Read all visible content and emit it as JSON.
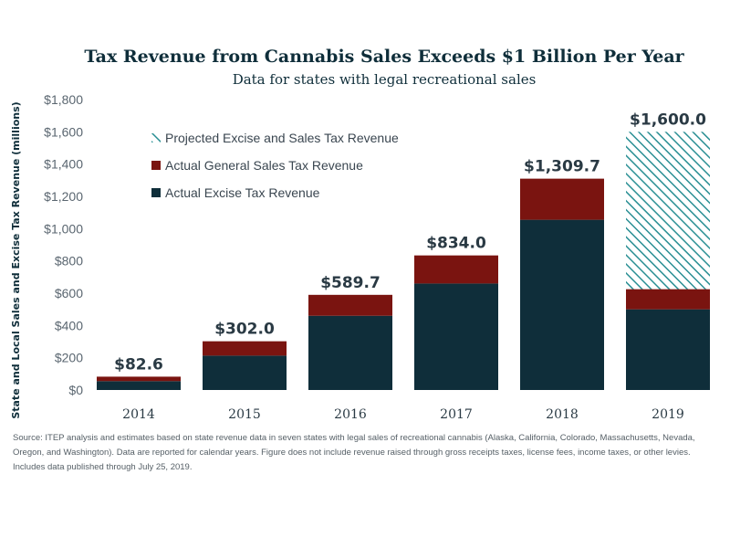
{
  "colors": {
    "excise": "#0f2e3a",
    "general_sales": "#7a1410",
    "projected": "#2a8f94",
    "text_dark": "#0f2e3a"
  },
  "legend": {
    "items": [
      {
        "label": "Projected Excise and Sales Tax Revenue",
        "style": "hatched",
        "color": "#2a8f94"
      },
      {
        "label": "Actual General Sales Tax Revenue",
        "style": "solid",
        "color": "#7a1410"
      },
      {
        "label": "Actual Excise Tax Revenue",
        "style": "solid",
        "color": "#0f2e3a"
      }
    ]
  },
  "source_note": "Source: ITEP analysis and estimates based on state revenue data in seven states with legal sales of recreational cannabis (Alaska, California, Colorado, Massachusetts, Nevada, Oregon, and Washington). Data are reported for calendar years. Figure does not include revenue raised through gross receipts taxes, license fees, income taxes, or other levies. Includes data published through July 25, 2019.",
  "chart_data": {
    "type": "bar",
    "stacked": true,
    "title": "Tax Revenue from Cannabis Sales Exceeds $1 Billion Per Year",
    "subtitle": "Data for states with legal recreational sales",
    "ylabel": "State and Local Sales and Excise Tax Revenue (millions)",
    "xlabel": "",
    "ylim": [
      0,
      1800
    ],
    "yticks": [
      0,
      200,
      400,
      600,
      800,
      1000,
      1200,
      1400,
      1600,
      1800
    ],
    "ytick_labels": [
      "$0",
      "$200",
      "$400",
      "$600",
      "$800",
      "$1,000",
      "$1,200",
      "$1,400",
      "$1,600",
      "$1,800"
    ],
    "categories": [
      "2014",
      "2015",
      "2016",
      "2017",
      "2018",
      "2019"
    ],
    "series": [
      {
        "name": "Actual Excise Tax Revenue",
        "values": [
          55,
          213,
          460,
          660,
          1055,
          500
        ]
      },
      {
        "name": "Actual General Sales Tax Revenue",
        "values": [
          27.6,
          89,
          129.7,
          174,
          254.7,
          125
        ]
      },
      {
        "name": "Projected Excise and Sales Tax Revenue",
        "values": [
          0,
          0,
          0,
          0,
          0,
          975
        ]
      }
    ],
    "totals": [
      82.6,
      302.0,
      589.7,
      834.0,
      1309.7,
      1600.0
    ],
    "total_labels": [
      "$82.6",
      "$302.0",
      "$589.7",
      "$834.0",
      "$1,309.7",
      "$1,600.0"
    ],
    "grid": false,
    "legend_position": "top-left"
  }
}
